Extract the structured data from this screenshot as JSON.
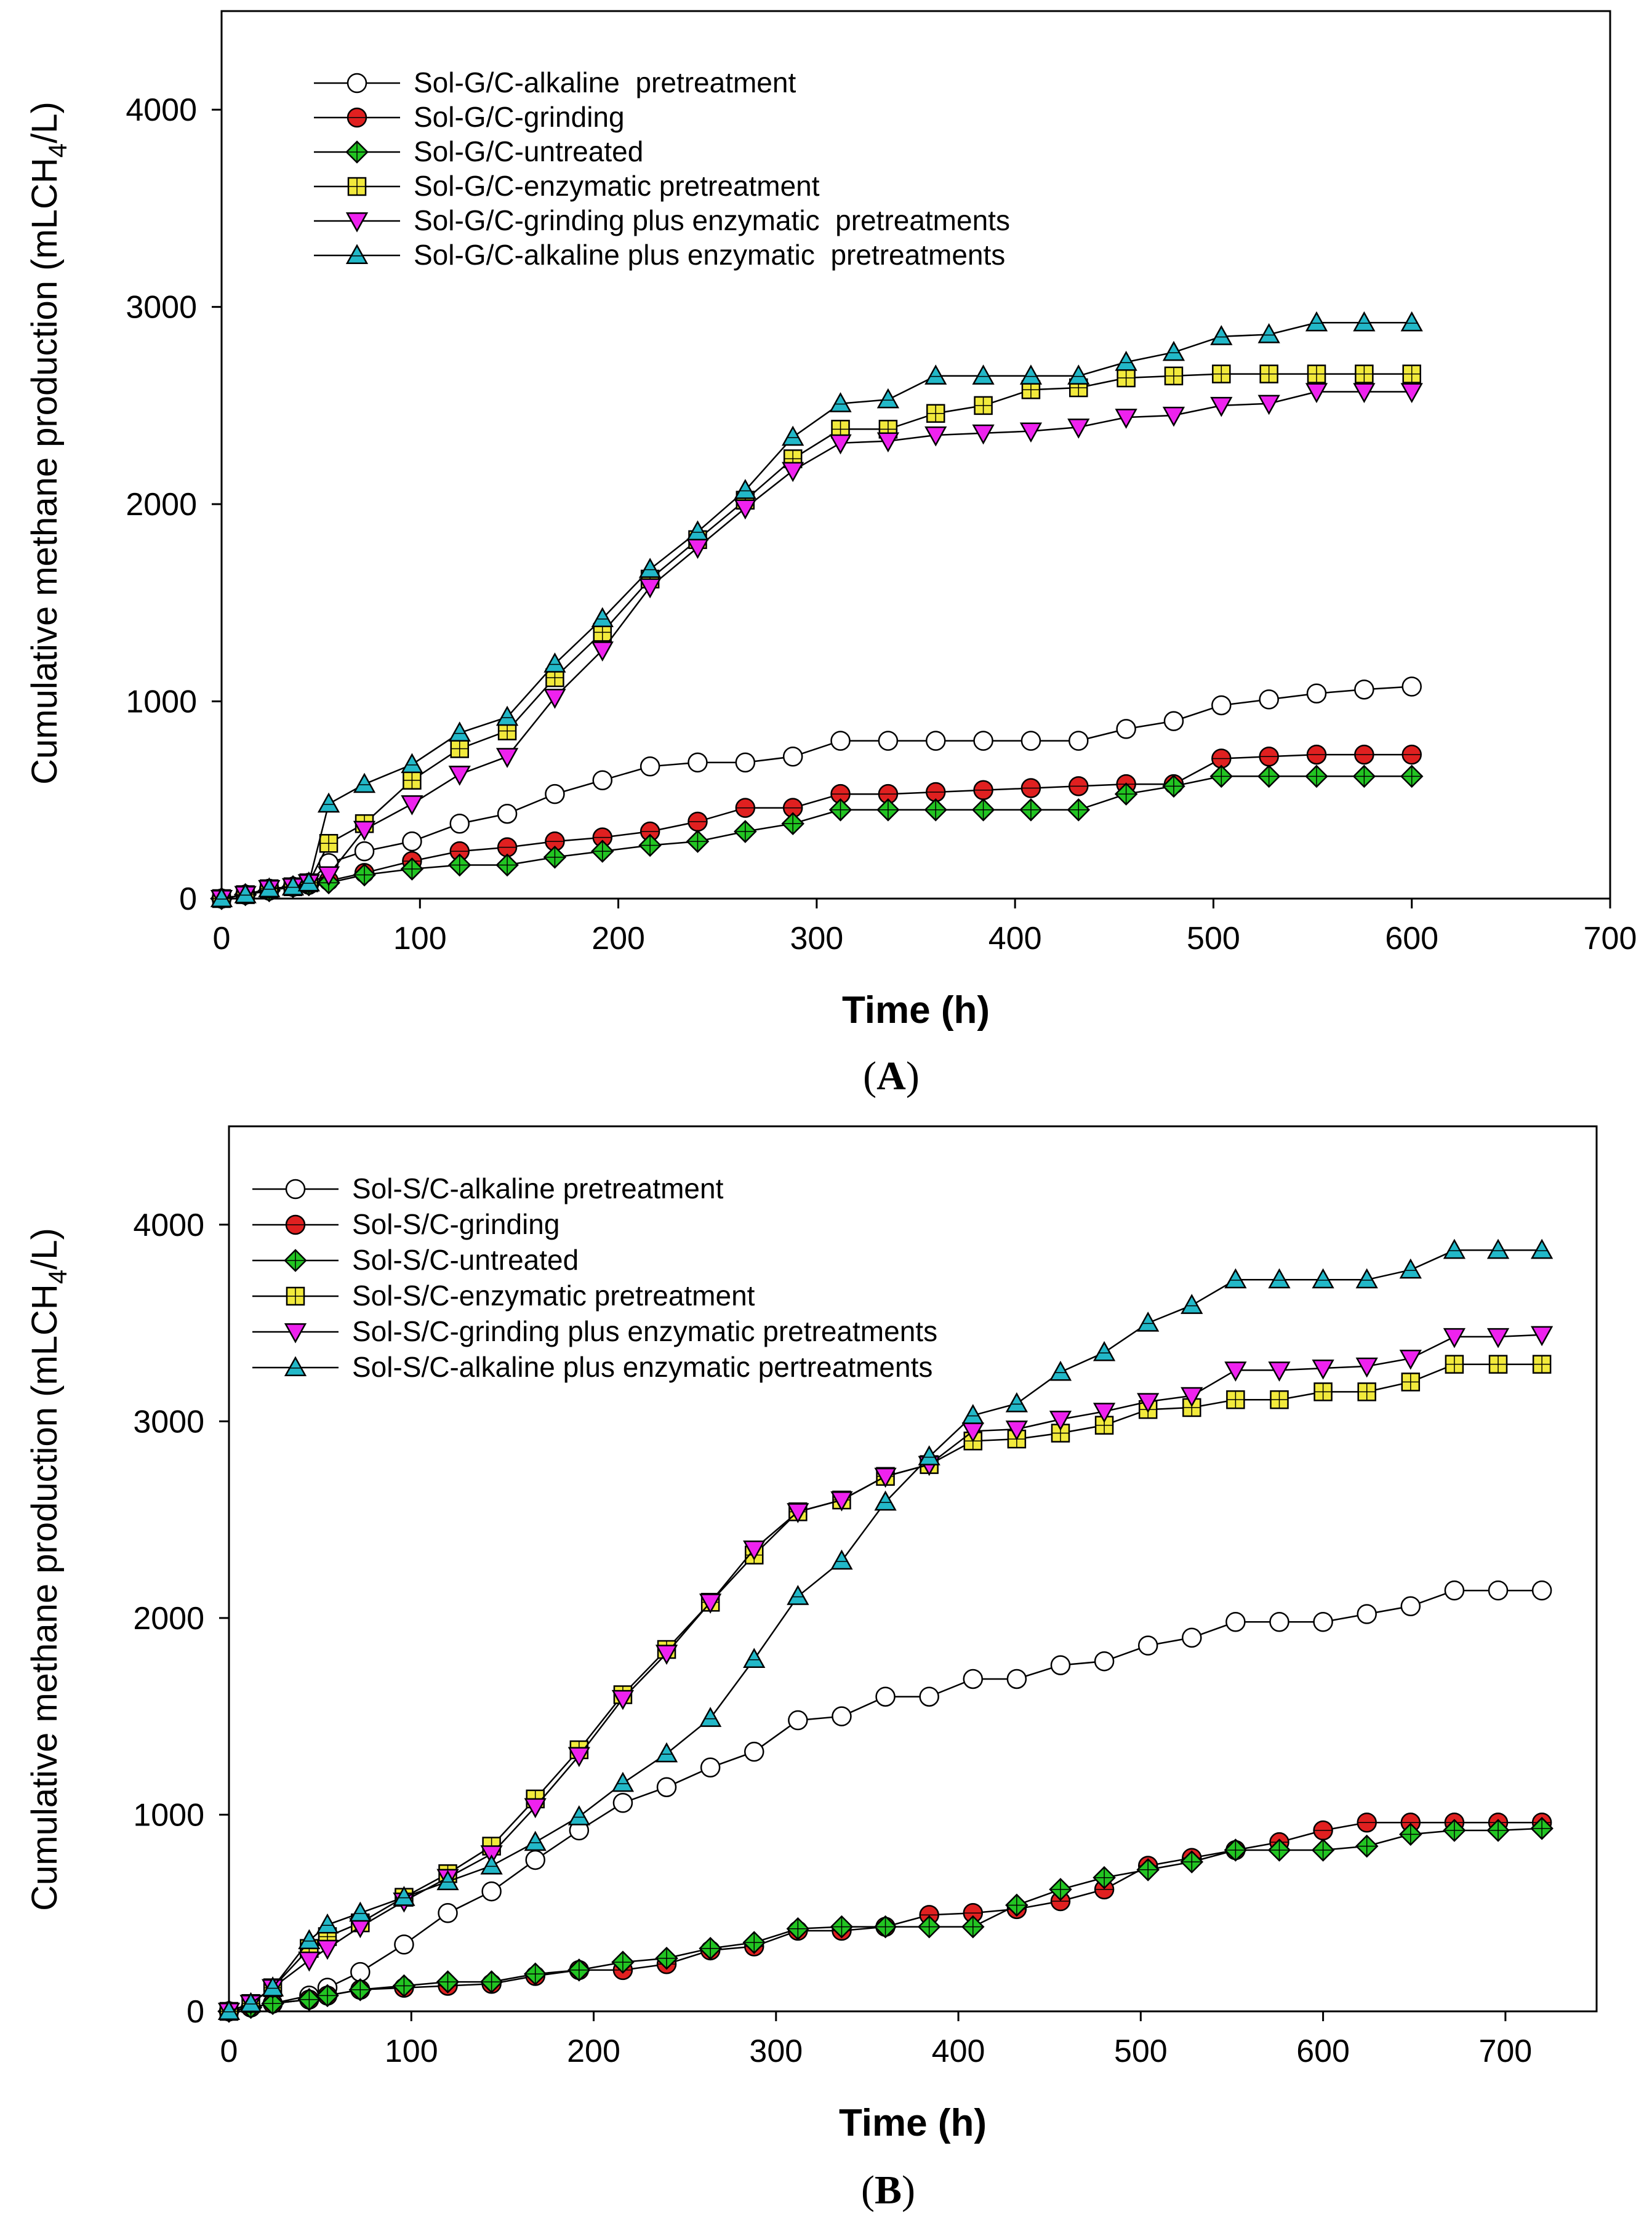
{
  "chart_data": [
    {
      "type": "line",
      "panel_label": "A",
      "xlabel": "Time (h)",
      "ylabel": "Cumulative methane production (mLCH4/L)",
      "ylabel_parts": {
        "main": "Cumulative methane production (mLCH",
        "sub": "4",
        "tail": "/L)"
      },
      "xlim": [
        0,
        700
      ],
      "ylim": [
        0,
        4500
      ],
      "x_ticks": [
        0,
        100,
        200,
        300,
        400,
        500,
        600,
        700
      ],
      "y_ticks": [
        0,
        1000,
        2000,
        3000,
        4000
      ],
      "legend_position": "top-left",
      "grid": false,
      "series": [
        {
          "name": "Sol-G/C-alkaline  pretreatment",
          "marker": "circle",
          "color": "#ffffff",
          "x": [
            0,
            12,
            24,
            36,
            44,
            54,
            72,
            96,
            120,
            144,
            168,
            192,
            216,
            240,
            264,
            288,
            312,
            336,
            360,
            384,
            408,
            432,
            456,
            480,
            504,
            528,
            552,
            576,
            600
          ],
          "y": [
            0,
            20,
            50,
            60,
            80,
            180,
            240,
            290,
            380,
            430,
            530,
            600,
            670,
            690,
            690,
            720,
            800,
            800,
            800,
            800,
            800,
            800,
            860,
            900,
            980,
            1010,
            1040,
            1060,
            1075
          ]
        },
        {
          "name": "Sol-G/C-grinding",
          "marker": "circle",
          "color": "#e02020",
          "x": [
            0,
            12,
            24,
            36,
            44,
            54,
            72,
            96,
            120,
            144,
            168,
            192,
            216,
            240,
            264,
            288,
            312,
            336,
            360,
            384,
            408,
            432,
            456,
            480,
            504,
            528,
            552,
            576,
            600
          ],
          "y": [
            0,
            20,
            40,
            60,
            70,
            90,
            130,
            190,
            240,
            260,
            290,
            310,
            340,
            390,
            460,
            460,
            530,
            530,
            540,
            550,
            560,
            570,
            580,
            580,
            710,
            720,
            730,
            730,
            730
          ]
        },
        {
          "name": "Sol-G/C-untreated",
          "marker": "diamond",
          "color": "#22c522",
          "x": [
            0,
            12,
            24,
            36,
            44,
            54,
            72,
            96,
            120,
            144,
            168,
            192,
            216,
            240,
            264,
            288,
            312,
            336,
            360,
            384,
            408,
            432,
            456,
            480,
            504,
            528,
            552,
            576,
            600
          ],
          "y": [
            0,
            20,
            40,
            60,
            70,
            80,
            120,
            150,
            170,
            170,
            210,
            240,
            270,
            290,
            340,
            380,
            450,
            450,
            450,
            450,
            450,
            450,
            530,
            570,
            620,
            620,
            620,
            620,
            620
          ]
        },
        {
          "name": "Sol-G/C-enzymatic pretreatment",
          "marker": "square",
          "color": "#f2ea3c",
          "x": [
            0,
            12,
            24,
            36,
            44,
            54,
            72,
            96,
            120,
            144,
            168,
            192,
            216,
            240,
            264,
            288,
            312,
            336,
            360,
            384,
            408,
            432,
            456,
            480,
            504,
            528,
            552,
            576,
            600
          ],
          "y": [
            0,
            20,
            50,
            60,
            80,
            280,
            380,
            600,
            760,
            850,
            1120,
            1350,
            1620,
            1820,
            2020,
            2230,
            2380,
            2380,
            2460,
            2500,
            2580,
            2590,
            2640,
            2650,
            2660,
            2660,
            2660,
            2660,
            2660
          ]
        },
        {
          "name": "Sol-G/C-grinding plus enzymatic  pretreatments",
          "marker": "triangle-down",
          "color": "#ee22ee",
          "x": [
            0,
            12,
            24,
            36,
            44,
            54,
            72,
            96,
            120,
            144,
            168,
            192,
            216,
            240,
            264,
            288,
            312,
            336,
            360,
            384,
            408,
            432,
            456,
            480,
            504,
            528,
            552,
            576,
            600
          ],
          "y": [
            0,
            20,
            50,
            60,
            80,
            120,
            350,
            480,
            630,
            720,
            1020,
            1260,
            1580,
            1780,
            1980,
            2170,
            2310,
            2320,
            2350,
            2360,
            2370,
            2390,
            2440,
            2450,
            2500,
            2510,
            2570,
            2570,
            2570
          ]
        },
        {
          "name": "Sol-G/C-alkaline plus enzymatic  pretreatments",
          "marker": "triangle-up",
          "color": "#22b8c8",
          "x": [
            0,
            12,
            24,
            36,
            44,
            54,
            72,
            96,
            120,
            144,
            168,
            192,
            216,
            240,
            264,
            288,
            312,
            336,
            360,
            384,
            408,
            432,
            456,
            480,
            504,
            528,
            552,
            576,
            600
          ],
          "y": [
            0,
            20,
            50,
            60,
            80,
            480,
            580,
            680,
            840,
            920,
            1190,
            1420,
            1670,
            1860,
            2070,
            2340,
            2510,
            2530,
            2650,
            2650,
            2650,
            2650,
            2720,
            2770,
            2850,
            2860,
            2920,
            2920,
            2920
          ]
        }
      ]
    },
    {
      "type": "line",
      "panel_label": "B",
      "xlabel": "Time (h)",
      "ylabel": "Cumulative methane production (mLCH4/L)",
      "ylabel_parts": {
        "main": "Cumulative methane production (mLCH",
        "sub": "4",
        "tail": "/L)"
      },
      "xlim": [
        0,
        750
      ],
      "ylim": [
        0,
        4500
      ],
      "x_ticks": [
        0,
        100,
        200,
        300,
        400,
        500,
        600,
        700
      ],
      "y_ticks": [
        0,
        1000,
        2000,
        3000,
        4000
      ],
      "legend_position": "top-left",
      "grid": false,
      "series": [
        {
          "name": "Sol-S/C-alkaline pretreatment",
          "marker": "circle",
          "color": "#ffffff",
          "x": [
            0,
            12,
            24,
            44,
            54,
            72,
            96,
            120,
            144,
            168,
            192,
            216,
            240,
            264,
            288,
            312,
            336,
            360,
            384,
            408,
            432,
            456,
            480,
            504,
            528,
            552,
            576,
            600,
            624,
            648,
            672,
            696,
            720
          ],
          "y": [
            0,
            20,
            40,
            80,
            120,
            200,
            340,
            500,
            610,
            770,
            920,
            1060,
            1140,
            1240,
            1320,
            1480,
            1500,
            1600,
            1600,
            1690,
            1690,
            1760,
            1780,
            1860,
            1900,
            1980,
            1980,
            1980,
            2020,
            2060,
            2140,
            2140,
            2140
          ]
        },
        {
          "name": "Sol-S/C-grinding",
          "marker": "circle",
          "color": "#e02020",
          "x": [
            0,
            12,
            24,
            44,
            54,
            72,
            96,
            120,
            144,
            168,
            192,
            216,
            240,
            264,
            288,
            312,
            336,
            360,
            384,
            408,
            432,
            456,
            480,
            504,
            528,
            552,
            576,
            600,
            624,
            648,
            672,
            696,
            720
          ],
          "y": [
            0,
            20,
            40,
            60,
            80,
            110,
            120,
            130,
            140,
            180,
            210,
            210,
            240,
            310,
            330,
            410,
            410,
            430,
            490,
            500,
            520,
            560,
            620,
            740,
            780,
            820,
            860,
            920,
            960,
            960,
            960,
            960,
            960
          ]
        },
        {
          "name": "Sol-S/C-untreated",
          "marker": "diamond",
          "color": "#22c522",
          "x": [
            0,
            12,
            24,
            44,
            54,
            72,
            96,
            120,
            144,
            168,
            192,
            216,
            240,
            264,
            288,
            312,
            336,
            360,
            384,
            408,
            432,
            456,
            480,
            504,
            528,
            552,
            576,
            600,
            624,
            648,
            672,
            696,
            720
          ],
          "y": [
            0,
            20,
            40,
            60,
            80,
            110,
            130,
            150,
            150,
            190,
            210,
            250,
            270,
            320,
            350,
            420,
            430,
            430,
            430,
            430,
            540,
            620,
            680,
            720,
            760,
            820,
            820,
            820,
            840,
            900,
            920,
            920,
            930
          ]
        },
        {
          "name": "Sol-S/C-enzymatic pretreatment",
          "marker": "square",
          "color": "#f2ea3c",
          "x": [
            0,
            12,
            24,
            44,
            54,
            72,
            96,
            120,
            144,
            168,
            192,
            216,
            240,
            264,
            288,
            312,
            336,
            360,
            384,
            408,
            432,
            456,
            480,
            504,
            528,
            552,
            576,
            600,
            624,
            648,
            672,
            696,
            720
          ],
          "y": [
            0,
            40,
            120,
            320,
            380,
            450,
            580,
            700,
            840,
            1080,
            1330,
            1610,
            1840,
            2080,
            2320,
            2540,
            2600,
            2720,
            2780,
            2900,
            2910,
            2940,
            2980,
            3060,
            3070,
            3110,
            3110,
            3150,
            3150,
            3200,
            3290,
            3290,
            3290
          ]
        },
        {
          "name": "Sol-S/C-grinding plus enzymatic pretreatments",
          "marker": "triangle-down",
          "color": "#ee22ee",
          "x": [
            0,
            12,
            24,
            44,
            54,
            72,
            96,
            120,
            144,
            168,
            192,
            216,
            240,
            264,
            288,
            312,
            336,
            360,
            384,
            408,
            432,
            456,
            480,
            504,
            528,
            552,
            576,
            600,
            624,
            648,
            672,
            696,
            720
          ],
          "y": [
            0,
            40,
            120,
            260,
            320,
            430,
            560,
            680,
            800,
            1040,
            1300,
            1590,
            1820,
            2080,
            2350,
            2540,
            2600,
            2720,
            2780,
            2950,
            2960,
            3010,
            3050,
            3100,
            3130,
            3260,
            3260,
            3270,
            3280,
            3320,
            3430,
            3430,
            3440
          ]
        },
        {
          "name": "Sol-S/C-alkaline plus enzymatic pertreatments",
          "marker": "triangle-up",
          "color": "#22b8c8",
          "x": [
            0,
            12,
            24,
            44,
            54,
            72,
            96,
            120,
            144,
            168,
            192,
            216,
            240,
            264,
            288,
            312,
            336,
            360,
            384,
            408,
            432,
            456,
            480,
            504,
            528,
            552,
            576,
            600,
            624,
            648,
            672,
            696,
            720
          ],
          "y": [
            0,
            40,
            120,
            360,
            440,
            500,
            580,
            660,
            740,
            860,
            990,
            1160,
            1310,
            1490,
            1790,
            2110,
            2290,
            2590,
            2820,
            3030,
            3090,
            3250,
            3350,
            3500,
            3590,
            3720,
            3720,
            3720,
            3720,
            3770,
            3870,
            3870,
            3870
          ]
        }
      ]
    }
  ]
}
